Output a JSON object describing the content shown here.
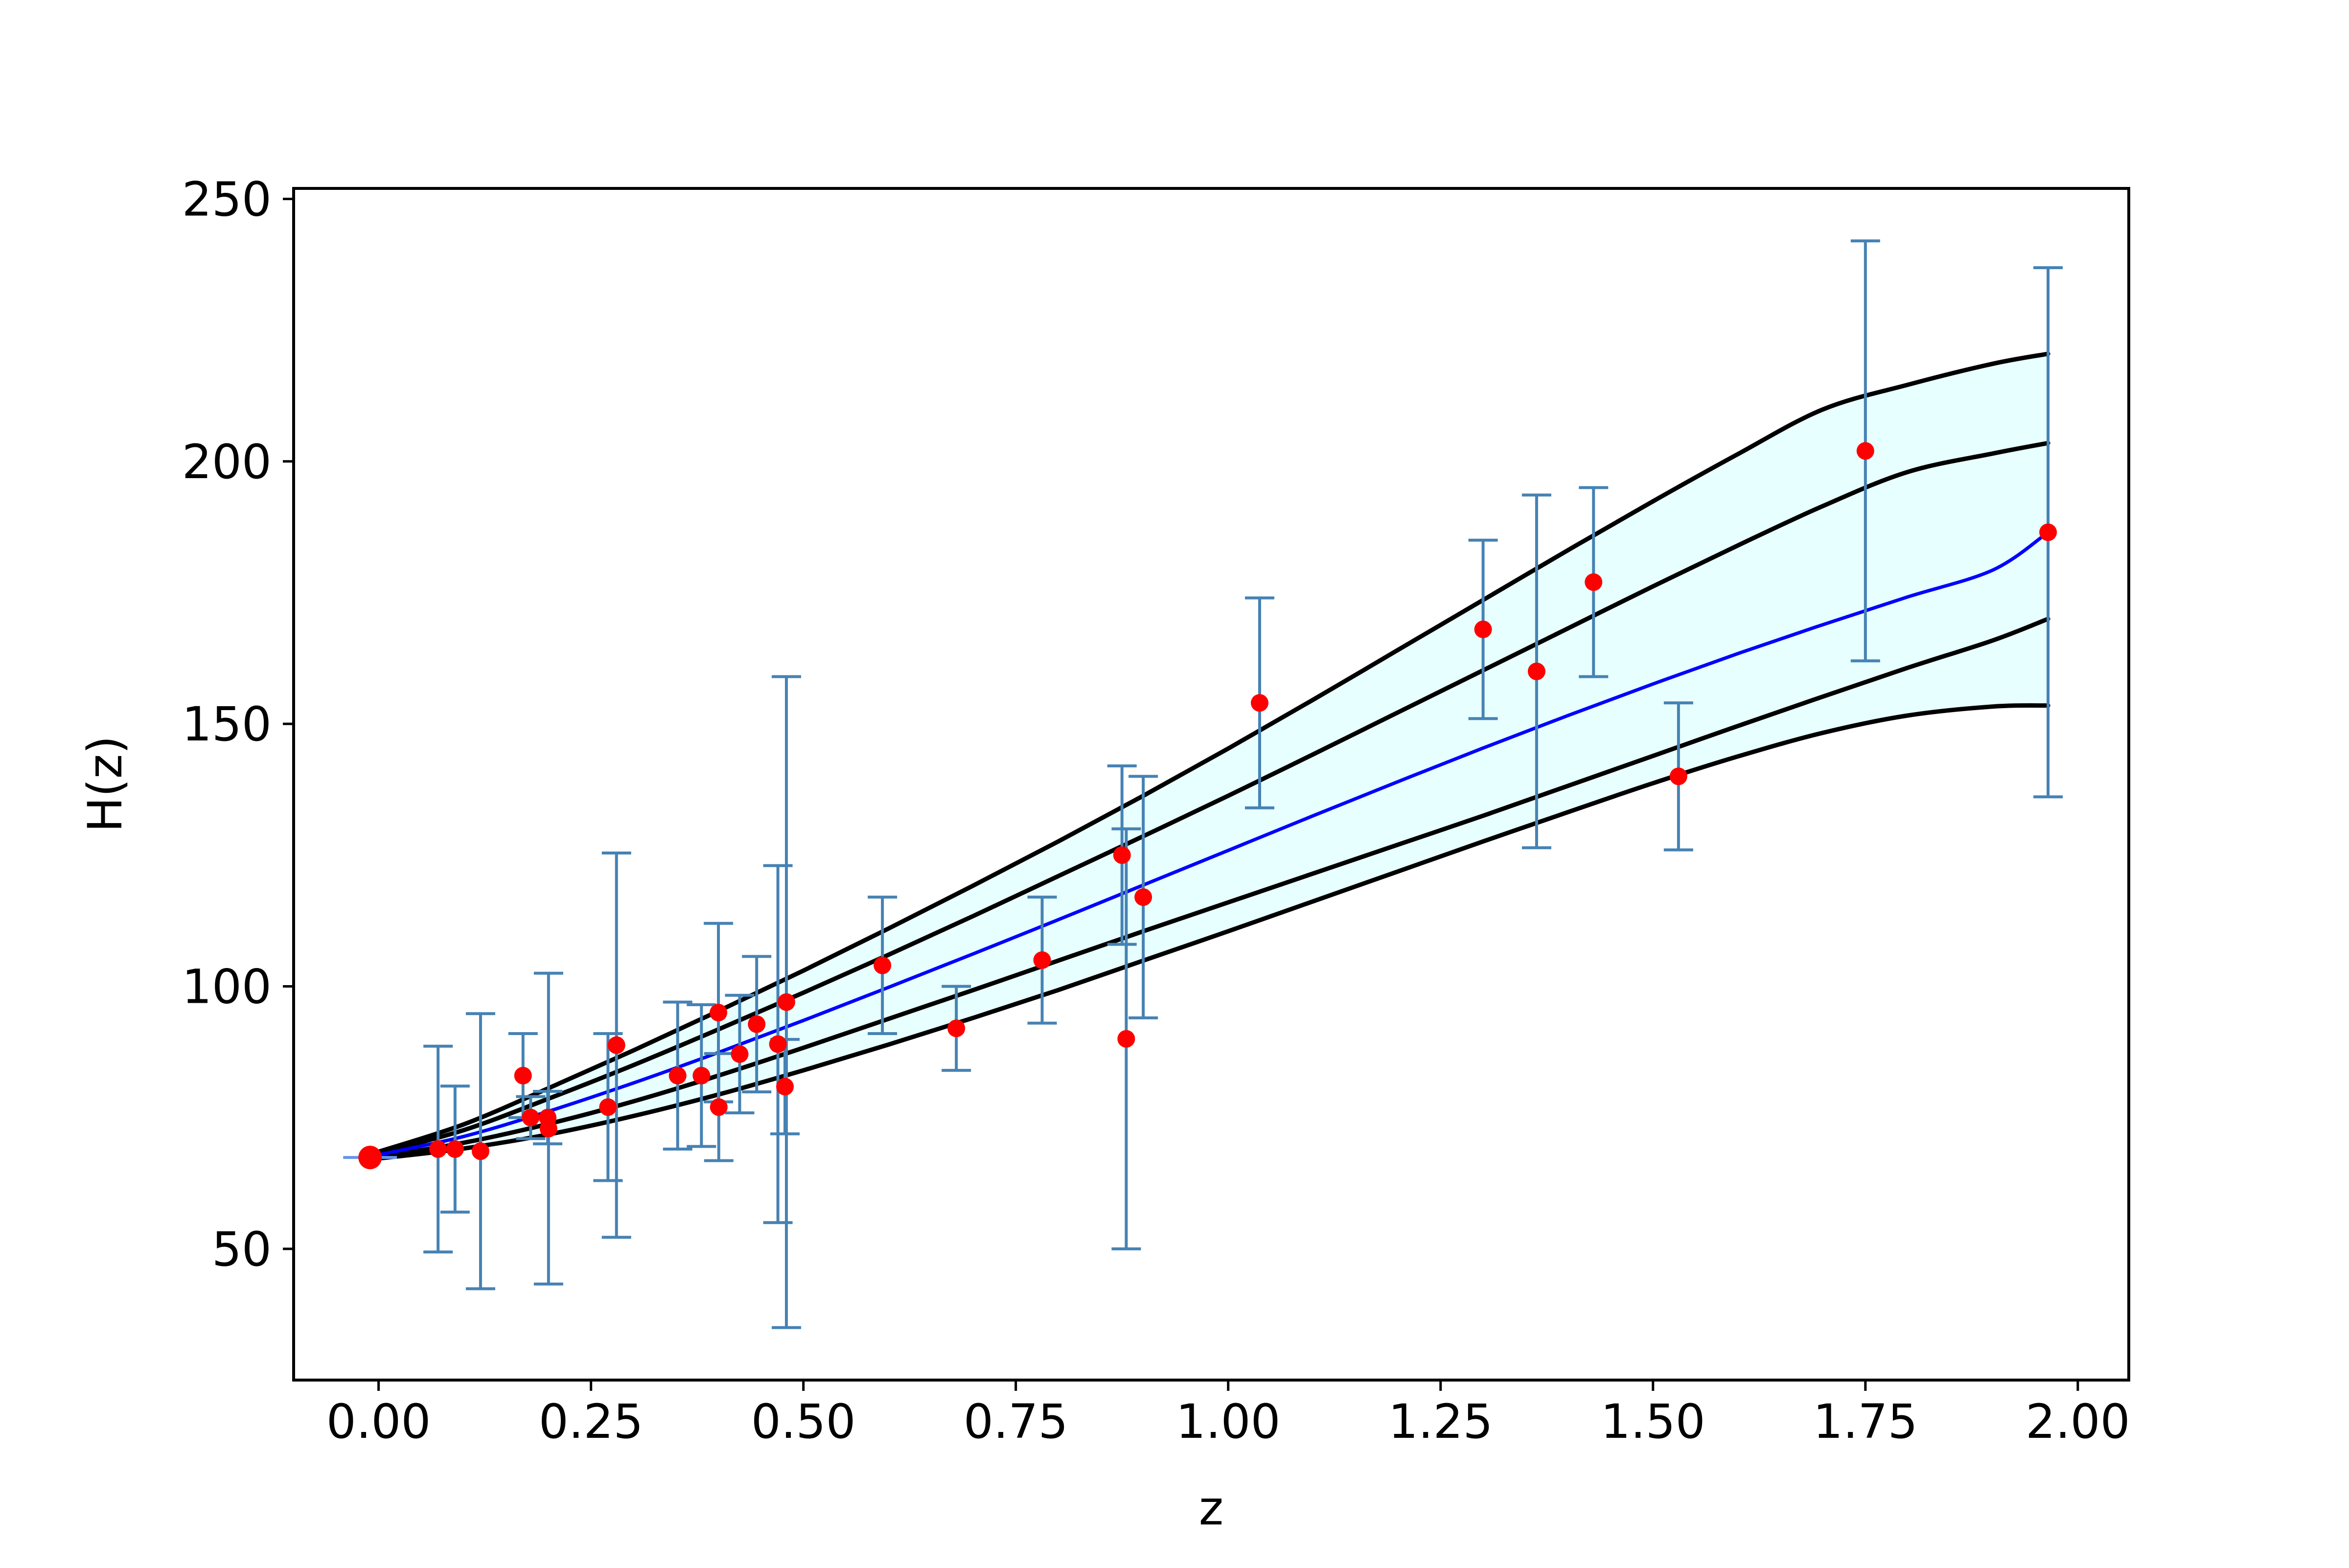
{
  "chart_data": {
    "type": "scatter",
    "title": "",
    "xlabel": "z",
    "ylabel": "H(z)",
    "xlim": [
      -0.1,
      2.06
    ],
    "ylim": [
      25,
      252
    ],
    "x_ticks": [
      0.0,
      0.25,
      0.5,
      0.75,
      1.0,
      1.25,
      1.5,
      1.75,
      2.0
    ],
    "x_tick_labels": [
      "0.00",
      "0.25",
      "0.50",
      "0.75",
      "1.00",
      "1.25",
      "1.50",
      "1.75",
      "2.00"
    ],
    "y_ticks": [
      50,
      100,
      150,
      200,
      250
    ],
    "y_tick_labels": [
      "50",
      "100",
      "150",
      "200",
      "250"
    ],
    "grid": false,
    "colors": {
      "errorbar": "#4682b4",
      "points": "#ff0000",
      "mean_curve": "#0000ff",
      "bound_curves": "#000000",
      "band_fill": "#e0ffff",
      "h0_marker": "#6495ed"
    },
    "observations": [
      {
        "z": 0.07,
        "H": 69.0,
        "err": 19.6
      },
      {
        "z": 0.09,
        "H": 69.0,
        "err": 12.0
      },
      {
        "z": 0.12,
        "H": 68.6,
        "err": 26.2
      },
      {
        "z": 0.17,
        "H": 83.0,
        "err": 8.0
      },
      {
        "z": 0.179,
        "H": 75.0,
        "err": 4.0
      },
      {
        "z": 0.199,
        "H": 75.0,
        "err": 5.0
      },
      {
        "z": 0.2,
        "H": 72.9,
        "err": 29.6
      },
      {
        "z": 0.27,
        "H": 77.0,
        "err": 14.0
      },
      {
        "z": 0.28,
        "H": 88.8,
        "err": 36.6
      },
      {
        "z": 0.352,
        "H": 83.0,
        "err": 14.0
      },
      {
        "z": 0.38,
        "H": 83.0,
        "err": 13.5
      },
      {
        "z": 0.4,
        "H": 95.0,
        "err": 17.0
      },
      {
        "z": 0.4004,
        "H": 77.0,
        "err": 10.2
      },
      {
        "z": 0.425,
        "H": 87.1,
        "err": 11.2
      },
      {
        "z": 0.445,
        "H": 92.8,
        "err": 12.9
      },
      {
        "z": 0.47,
        "H": 89.0,
        "err": 34.0
      },
      {
        "z": 0.4783,
        "H": 80.9,
        "err": 9.0
      },
      {
        "z": 0.48,
        "H": 97.0,
        "err": 62.0
      },
      {
        "z": 0.593,
        "H": 104.0,
        "err": 13.0
      },
      {
        "z": 0.68,
        "H": 92.0,
        "err": 8.0
      },
      {
        "z": 0.781,
        "H": 105.0,
        "err": 12.0
      },
      {
        "z": 0.875,
        "H": 125.0,
        "err": 17.0
      },
      {
        "z": 0.88,
        "H": 90.0,
        "err": 40.0
      },
      {
        "z": 0.9,
        "H": 117.0,
        "err": 23.0
      },
      {
        "z": 1.037,
        "H": 154.0,
        "err": 20.0
      },
      {
        "z": 1.3,
        "H": 168.0,
        "err": 17.0
      },
      {
        "z": 1.363,
        "H": 160.0,
        "err": 33.6
      },
      {
        "z": 1.43,
        "H": 177.0,
        "err": 18.0
      },
      {
        "z": 1.53,
        "H": 140.0,
        "err": 14.0
      },
      {
        "z": 1.75,
        "H": 202.0,
        "err": 40.0
      },
      {
        "z": 1.965,
        "H": 186.5,
        "err": 50.4
      }
    ],
    "h0_point": {
      "z": -0.01,
      "H": 67.4,
      "err": 0.5
    },
    "reconstruction": {
      "z": [
        0.0,
        0.1,
        0.2,
        0.3,
        0.4,
        0.5,
        0.6,
        0.7,
        0.8,
        0.9,
        1.0,
        1.1,
        1.2,
        1.3,
        1.4,
        1.5,
        1.6,
        1.7,
        1.8,
        1.9,
        1.965
      ],
      "mean": [
        67.9,
        71.4,
        76.2,
        81.6,
        87.4,
        93.5,
        99.8,
        106.2,
        112.7,
        119.3,
        125.9,
        132.5,
        139.0,
        145.4,
        151.6,
        157.6,
        163.4,
        168.9,
        174.2,
        179.3,
        186.5
      ],
      "plus_1sigma": [
        68.2,
        72.6,
        78.6,
        85.0,
        91.8,
        98.8,
        106.0,
        113.4,
        121.0,
        128.6,
        136.3,
        144.2,
        152.2,
        160.2,
        168.2,
        176.2,
        184.0,
        191.5,
        198.0,
        201.5,
        203.5
      ],
      "minus_1sigma": [
        67.5,
        70.2,
        73.8,
        78.1,
        83.0,
        88.3,
        93.8,
        99.3,
        104.9,
        110.5,
        116.0,
        121.5,
        127.0,
        132.5,
        138.2,
        143.9,
        149.6,
        155.2,
        160.7,
        165.9,
        170.0
      ],
      "plus_2sigma": [
        68.5,
        73.7,
        80.6,
        87.8,
        95.3,
        103.0,
        111.0,
        119.2,
        127.6,
        136.3,
        145.3,
        154.6,
        164.1,
        173.6,
        183.1,
        192.4,
        201.4,
        209.9,
        214.6,
        218.6,
        220.5
      ],
      "minus_2sigma": [
        67.2,
        69.1,
        71.8,
        75.3,
        79.4,
        84.0,
        88.9,
        94.0,
        99.3,
        104.9,
        110.5,
        116.2,
        121.9,
        127.6,
        133.2,
        138.7,
        143.8,
        148.3,
        151.6,
        153.3,
        153.5
      ]
    }
  }
}
